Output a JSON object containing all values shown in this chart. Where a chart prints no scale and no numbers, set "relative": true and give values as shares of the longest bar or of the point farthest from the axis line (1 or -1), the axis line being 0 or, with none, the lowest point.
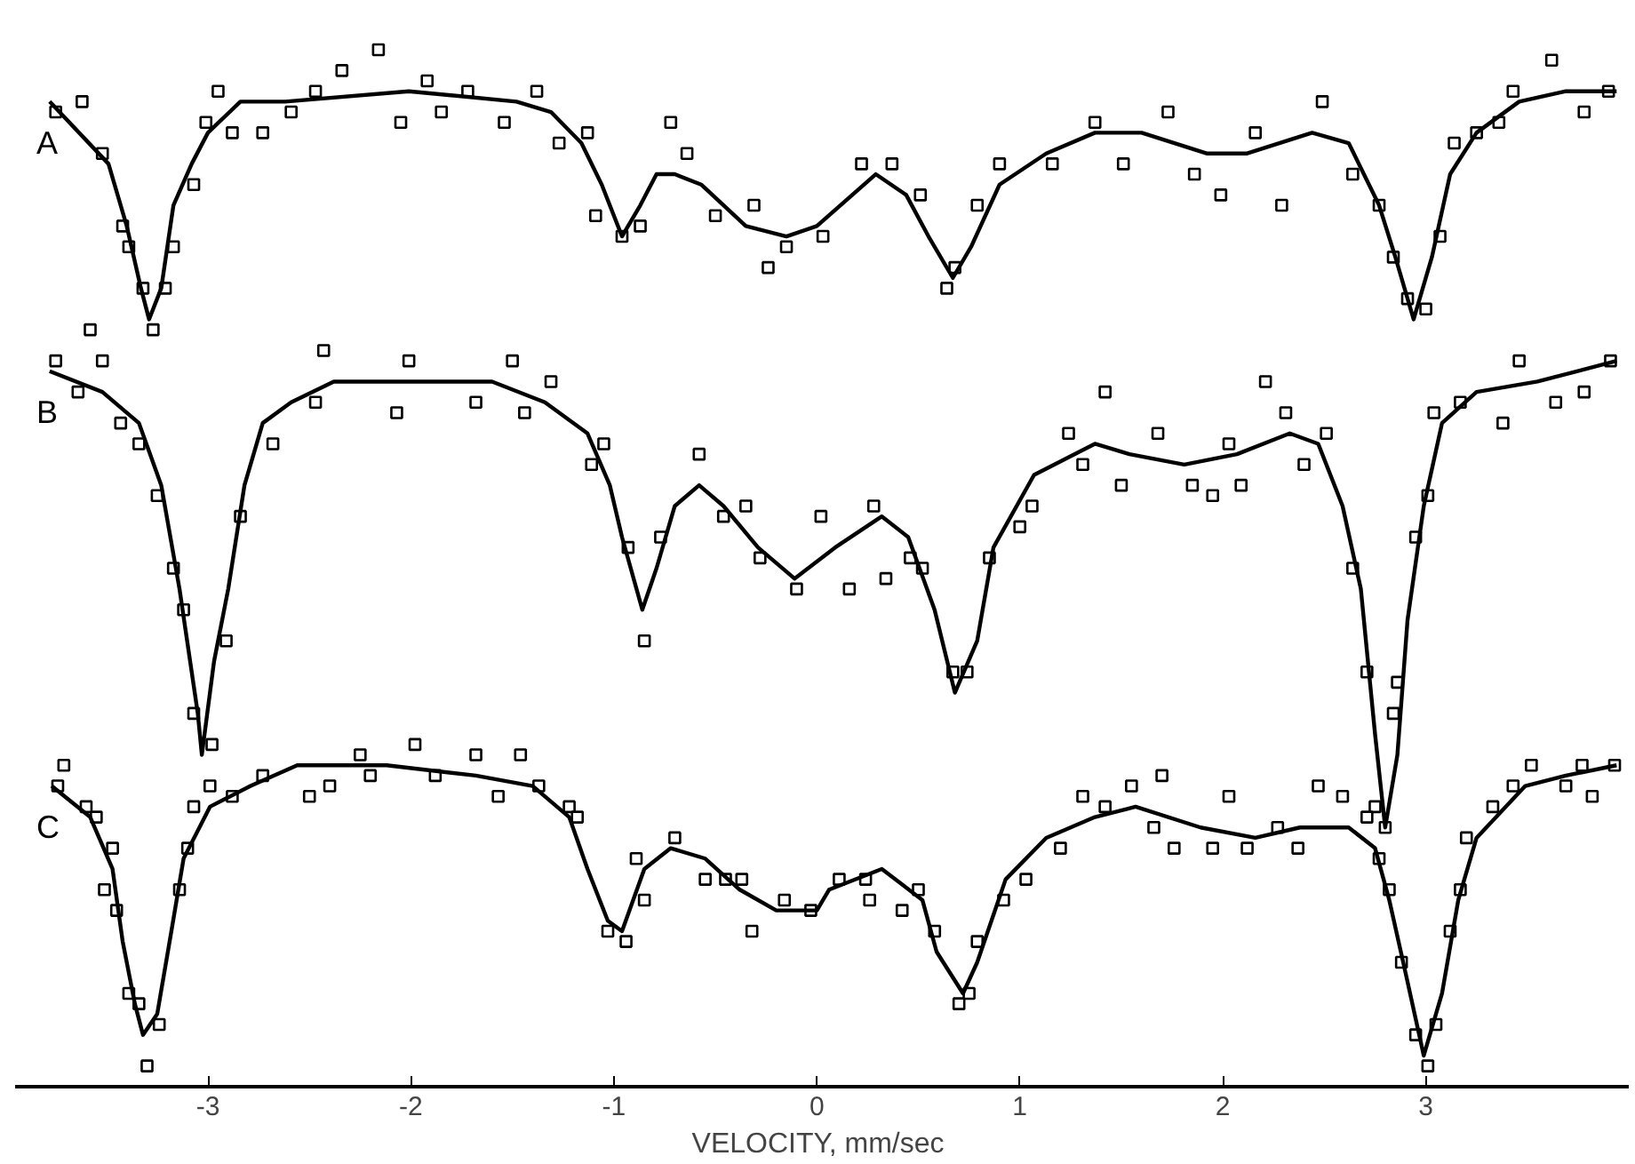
{
  "chart_data": {
    "type": "line",
    "relative": true,
    "xlim": [
      -3.95,
      4.0
    ],
    "xticks": [
      -3,
      -2,
      -1,
      0,
      1,
      2,
      3
    ],
    "xlabel": "VELOCITY,  mm/sec",
    "line_style": "solid",
    "series": [
      {
        "type": "scatter",
        "marker": "square",
        "color": "#000000",
        "x": [
          -3.75,
          -3.62,
          -3.52,
          -3.42,
          -3.39,
          -3.32,
          -3.27,
          -3.21,
          -3.17,
          -3.07,
          -3.01,
          -2.95,
          -2.88,
          -2.73,
          -2.59,
          -2.47,
          -2.34,
          -2.16,
          -2.05,
          -1.92,
          -1.85,
          -1.72,
          -1.54,
          -1.38,
          -1.27,
          -1.13,
          -1.09,
          -0.96,
          -0.87,
          -0.72,
          -0.64,
          -0.5,
          -0.31,
          -0.24,
          -0.15,
          0.03,
          0.22,
          0.37,
          0.51,
          0.64,
          0.68,
          0.79,
          0.9,
          1.16,
          1.37,
          1.51,
          1.73,
          1.86,
          1.99,
          2.16,
          2.29,
          2.49,
          2.64,
          2.77,
          2.84,
          2.91,
          3.0,
          3.07,
          3.14,
          3.25,
          3.36,
          3.43,
          3.62,
          3.78,
          3.9
        ],
        "values": [
          0.94,
          0.95,
          0.9,
          0.83,
          0.81,
          0.77,
          0.73,
          0.77,
          0.81,
          0.87,
          0.93,
          0.96,
          0.92,
          0.92,
          0.94,
          0.96,
          0.98,
          1.0,
          0.93,
          0.97,
          0.94,
          0.96,
          0.93,
          0.96,
          0.91,
          0.92,
          0.84,
          0.82,
          0.83,
          0.93,
          0.9,
          0.84,
          0.85,
          0.79,
          0.81,
          0.82,
          0.89,
          0.89,
          0.86,
          0.77,
          0.79,
          0.85,
          0.89,
          0.89,
          0.93,
          0.89,
          0.94,
          0.88,
          0.86,
          0.92,
          0.85,
          0.95,
          0.88,
          0.85,
          0.8,
          0.76,
          0.75,
          0.82,
          0.91,
          0.92,
          0.93,
          0.96,
          0.99,
          0.94,
          0.96
        ]
      },
      {
        "name": "A",
        "color": "#000000",
        "x": [
          -3.78,
          -3.49,
          -3.4,
          -3.33,
          -3.29,
          -3.23,
          -3.17,
          -3.08,
          -3.0,
          -2.84,
          -2.62,
          -2.01,
          -1.48,
          -1.31,
          -1.16,
          -1.06,
          -0.96,
          -0.87,
          -0.79,
          -0.7,
          -0.57,
          -0.35,
          -0.15,
          0.0,
          0.29,
          0.44,
          0.55,
          0.67,
          0.76,
          0.9,
          1.13,
          1.37,
          1.6,
          1.92,
          2.12,
          2.44,
          2.62,
          2.77,
          2.85,
          2.94,
          3.03,
          3.12,
          3.25,
          3.46,
          3.69,
          3.94
        ],
        "values": [
          0.95,
          0.89,
          0.83,
          0.77,
          0.74,
          0.77,
          0.85,
          0.89,
          0.92,
          0.95,
          0.95,
          0.96,
          0.95,
          0.94,
          0.91,
          0.87,
          0.82,
          0.85,
          0.88,
          0.88,
          0.87,
          0.83,
          0.82,
          0.83,
          0.88,
          0.86,
          0.82,
          0.78,
          0.81,
          0.87,
          0.9,
          0.92,
          0.92,
          0.9,
          0.9,
          0.92,
          0.91,
          0.85,
          0.8,
          0.74,
          0.8,
          0.88,
          0.92,
          0.95,
          0.96,
          0.96
        ]
      },
      {
        "type": "scatter",
        "marker": "square",
        "color": "#000000",
        "x": [
          -3.75,
          -3.58,
          -3.64,
          -3.52,
          -3.43,
          -3.34,
          -3.25,
          -3.17,
          -3.12,
          -3.07,
          -2.98,
          -2.91,
          -2.84,
          -2.68,
          -2.47,
          -2.43,
          -2.07,
          -2.01,
          -1.68,
          -1.5,
          -1.44,
          -1.31,
          -1.11,
          -1.05,
          -0.93,
          -0.85,
          -0.77,
          -0.58,
          -0.46,
          -0.35,
          -0.28,
          -0.1,
          0.02,
          0.16,
          0.28,
          0.34,
          0.46,
          0.52,
          0.67,
          0.74,
          0.85,
          1.0,
          1.06,
          1.24,
          1.31,
          1.42,
          1.5,
          1.68,
          1.85,
          1.95,
          2.03,
          2.09,
          2.21,
          2.31,
          2.4,
          2.51,
          2.64,
          2.71,
          2.75,
          2.8,
          2.84,
          2.86,
          2.95,
          3.01,
          3.04,
          3.17,
          3.38,
          3.46,
          3.64,
          3.78,
          3.91
        ],
        "values": [
          0.7,
          0.73,
          0.67,
          0.7,
          0.64,
          0.62,
          0.57,
          0.5,
          0.46,
          0.36,
          0.33,
          0.43,
          0.55,
          0.62,
          0.66,
          0.71,
          0.65,
          0.7,
          0.66,
          0.7,
          0.65,
          0.68,
          0.6,
          0.62,
          0.52,
          0.43,
          0.53,
          0.61,
          0.55,
          0.56,
          0.51,
          0.48,
          0.55,
          0.48,
          0.56,
          0.49,
          0.51,
          0.5,
          0.4,
          0.4,
          0.51,
          0.54,
          0.56,
          0.63,
          0.6,
          0.67,
          0.58,
          0.63,
          0.58,
          0.57,
          0.62,
          0.58,
          0.68,
          0.65,
          0.6,
          0.63,
          0.5,
          0.4,
          0.27,
          0.25,
          0.36,
          0.39,
          0.53,
          0.57,
          0.65,
          0.66,
          0.64,
          0.7,
          0.66,
          0.67,
          0.7
        ]
      },
      {
        "name": "B",
        "color": "#000000",
        "x": [
          -3.78,
          -3.52,
          -3.34,
          -3.23,
          -3.14,
          -3.05,
          -3.03,
          -2.97,
          -2.9,
          -2.82,
          -2.73,
          -2.59,
          -2.38,
          -1.98,
          -1.6,
          -1.34,
          -1.13,
          -1.02,
          -0.96,
          -0.86,
          -0.79,
          -0.7,
          -0.58,
          -0.46,
          -0.29,
          -0.11,
          0.09,
          0.32,
          0.45,
          0.58,
          0.68,
          0.79,
          0.87,
          1.07,
          1.37,
          1.54,
          1.81,
          2.07,
          2.33,
          2.47,
          2.59,
          2.68,
          2.75,
          2.8,
          2.86,
          2.91,
          2.99,
          3.08,
          3.25,
          3.55,
          3.94
        ],
        "values": [
          0.69,
          0.67,
          0.64,
          0.58,
          0.48,
          0.36,
          0.32,
          0.41,
          0.48,
          0.58,
          0.64,
          0.66,
          0.68,
          0.68,
          0.68,
          0.66,
          0.63,
          0.58,
          0.53,
          0.46,
          0.5,
          0.56,
          0.58,
          0.56,
          0.52,
          0.49,
          0.52,
          0.55,
          0.53,
          0.46,
          0.38,
          0.43,
          0.52,
          0.59,
          0.62,
          0.61,
          0.6,
          0.61,
          0.63,
          0.62,
          0.56,
          0.48,
          0.34,
          0.25,
          0.32,
          0.45,
          0.56,
          0.64,
          0.67,
          0.68,
          0.7
        ]
      },
      {
        "type": "scatter",
        "marker": "square",
        "color": "#000000",
        "x": [
          -3.74,
          -3.71,
          -3.6,
          -3.55,
          -3.47,
          -3.51,
          -3.45,
          -3.39,
          -3.34,
          -3.3,
          -3.24,
          -3.14,
          -3.1,
          -3.07,
          -2.99,
          -2.88,
          -2.73,
          -2.5,
          -2.4,
          -2.25,
          -2.2,
          -1.98,
          -1.88,
          -1.68,
          -1.57,
          -1.46,
          -1.37,
          -1.22,
          -1.18,
          -1.03,
          -0.94,
          -0.89,
          -0.85,
          -0.7,
          -0.55,
          -0.45,
          -0.37,
          -0.32,
          -0.16,
          -0.03,
          0.11,
          0.24,
          0.26,
          0.42,
          0.5,
          0.58,
          0.7,
          0.75,
          0.79,
          0.92,
          1.03,
          1.2,
          1.31,
          1.42,
          1.55,
          1.66,
          1.7,
          1.76,
          1.95,
          2.03,
          2.12,
          2.27,
          2.37,
          2.47,
          2.59,
          2.71,
          2.77,
          2.82,
          2.88,
          2.95,
          3.01,
          3.05,
          3.12,
          3.17,
          3.2,
          3.33,
          3.43,
          3.52,
          3.69,
          3.77,
          3.82,
          3.93
        ],
        "values": [
          0.29,
          0.31,
          0.27,
          0.26,
          0.23,
          0.19,
          0.17,
          0.09,
          0.08,
          0.02,
          0.06,
          0.19,
          0.23,
          0.27,
          0.29,
          0.28,
          0.3,
          0.28,
          0.29,
          0.32,
          0.3,
          0.33,
          0.3,
          0.32,
          0.28,
          0.32,
          0.29,
          0.27,
          0.26,
          0.15,
          0.14,
          0.22,
          0.18,
          0.24,
          0.2,
          0.2,
          0.2,
          0.15,
          0.18,
          0.17,
          0.2,
          0.2,
          0.18,
          0.17,
          0.19,
          0.15,
          0.08,
          0.09,
          0.14,
          0.18,
          0.2,
          0.23,
          0.28,
          0.27,
          0.29,
          0.25,
          0.3,
          0.23,
          0.23,
          0.28,
          0.23,
          0.25,
          0.23,
          0.29,
          0.28,
          0.26,
          0.22,
          0.19,
          0.12,
          0.05,
          0.02,
          0.06,
          0.15,
          0.19,
          0.24,
          0.27,
          0.29,
          0.31,
          0.29,
          0.31,
          0.28,
          0.31
        ]
      },
      {
        "name": "C",
        "color": "#000000",
        "x": [
          -3.77,
          -3.58,
          -3.47,
          -3.42,
          -3.36,
          -3.32,
          -3.25,
          -3.18,
          -3.12,
          -2.99,
          -2.79,
          -2.56,
          -2.12,
          -1.68,
          -1.4,
          -1.22,
          -1.13,
          -1.03,
          -0.96,
          -0.85,
          -0.72,
          -0.55,
          -0.38,
          -0.2,
          0.0,
          0.06,
          0.32,
          0.52,
          0.59,
          0.72,
          0.79,
          0.93,
          1.13,
          1.37,
          1.57,
          1.89,
          2.16,
          2.38,
          2.62,
          2.75,
          2.82,
          2.9,
          2.99,
          3.08,
          3.16,
          3.25,
          3.49,
          3.69,
          3.94
        ],
        "values": [
          0.29,
          0.26,
          0.21,
          0.14,
          0.08,
          0.05,
          0.07,
          0.15,
          0.22,
          0.27,
          0.29,
          0.31,
          0.31,
          0.3,
          0.29,
          0.26,
          0.21,
          0.16,
          0.15,
          0.21,
          0.23,
          0.22,
          0.19,
          0.17,
          0.17,
          0.19,
          0.21,
          0.18,
          0.13,
          0.09,
          0.12,
          0.2,
          0.24,
          0.26,
          0.27,
          0.25,
          0.24,
          0.25,
          0.25,
          0.23,
          0.18,
          0.11,
          0.03,
          0.09,
          0.18,
          0.24,
          0.29,
          0.3,
          0.31
        ]
      }
    ]
  }
}
